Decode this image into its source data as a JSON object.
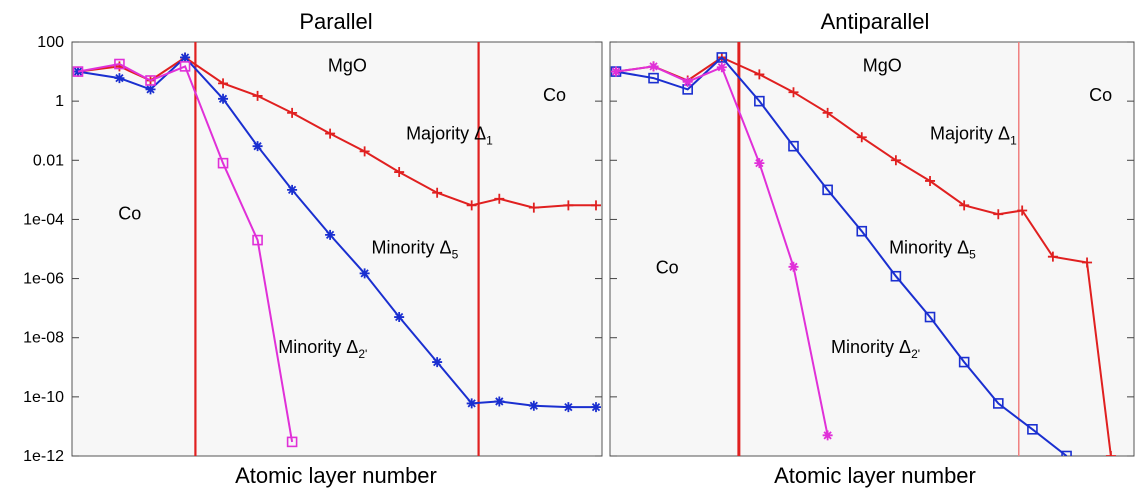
{
  "chart_data": [
    {
      "type": "line",
      "title": "Parallel",
      "xlabel": "Atomic layer number",
      "ylabel": "",
      "yscale": "log",
      "ylim": [
        1e-12,
        100
      ],
      "xlim": [
        0,
        15
      ],
      "y_ticks": [
        "100",
        "1",
        "0.01",
        "1e-04",
        "1e-06",
        "1e-08",
        "1e-10",
        "1e-12"
      ],
      "show_y_tick_labels": true,
      "grid": false,
      "background": "#f7f7f7",
      "vlines": [
        {
          "x": 3.4,
          "color": "#e02020"
        },
        {
          "x": 11.6,
          "color": "#e02020"
        }
      ],
      "region_labels": [
        {
          "text": "MgO",
          "x": 7.8,
          "y": 10
        },
        {
          "text": "Co",
          "x": 13.8,
          "y": 1
        },
        {
          "text": "Co",
          "x": 1.5,
          "y": 0.0001
        }
      ],
      "series": [
        {
          "label_main": "Majority Δ",
          "label_sub": "1",
          "label_pos": {
            "x": 9.5,
            "y": 0.05
          },
          "color": "#e02020",
          "marker": "plus",
          "x": [
            0,
            1.2,
            2.1,
            3.1,
            4.2,
            5.2,
            6.2,
            7.3,
            8.3,
            9.3,
            10.4,
            11.4,
            12.2,
            13.2,
            14.2,
            15
          ],
          "y": [
            10,
            15,
            5,
            30,
            4,
            1.5,
            0.4,
            0.08,
            0.02,
            0.004,
            0.0008,
            0.0003,
            0.0005,
            0.00025,
            0.0003,
            0.0003
          ]
        },
        {
          "label_main": "Minority Δ",
          "label_sub": "5",
          "label_pos": {
            "x": 8.5,
            "y": 7e-06
          },
          "color": "#1a2fd0",
          "marker": "star",
          "x": [
            0,
            1.2,
            2.1,
            3.1,
            4.2,
            5.2,
            6.2,
            7.3,
            8.3,
            9.3,
            10.4,
            11.4,
            12.2,
            13.2,
            14.2,
            15
          ],
          "y": [
            10,
            6,
            2.5,
            30,
            1.2,
            0.03,
            0.001,
            3e-05,
            1.5e-06,
            5e-08,
            1.5e-09,
            6e-11,
            7e-11,
            5e-11,
            4.5e-11,
            4.5e-11
          ]
        },
        {
          "label_main": "Minority Δ",
          "label_sub": "2'",
          "label_pos": {
            "x": 5.8,
            "y": 3e-09
          },
          "color": "#e030d8",
          "marker": "square",
          "x": [
            0,
            1.2,
            2.1,
            3.1,
            4.2,
            5.2,
            6.2
          ],
          "y": [
            10,
            18,
            5,
            15,
            0.008,
            2e-05,
            3e-12
          ]
        }
      ]
    },
    {
      "type": "line",
      "title": "Antiparallel",
      "xlabel": "Atomic layer number",
      "ylabel": "",
      "yscale": "log",
      "ylim": [
        1e-12,
        100
      ],
      "xlim": [
        0,
        15
      ],
      "y_ticks": [
        "100",
        "1",
        "0.01",
        "1e-04",
        "1e-06",
        "1e-08",
        "1e-10",
        "1e-12"
      ],
      "show_y_tick_labels": false,
      "grid": false,
      "background": "#f7f7f7",
      "vlines": [
        {
          "x": 3.6,
          "color": "#e02020",
          "width": 3
        },
        {
          "x": 11.8,
          "color": "#f08080",
          "width": 1.5
        }
      ],
      "region_labels": [
        {
          "text": "MgO",
          "x": 7.8,
          "y": 10
        },
        {
          "text": "Co",
          "x": 14.2,
          "y": 1
        },
        {
          "text": "Co",
          "x": 1.5,
          "y": 1.5e-06
        }
      ],
      "series": [
        {
          "label_main": "Majority Δ",
          "label_sub": "1",
          "label_pos": {
            "x": 9.2,
            "y": 0.05
          },
          "color": "#e02020",
          "marker": "plus",
          "x": [
            0,
            1.1,
            2.1,
            3.1,
            4.2,
            5.2,
            6.2,
            7.2,
            8.2,
            9.2,
            10.2,
            11.2,
            11.9,
            12.8,
            13.8,
            14.5
          ],
          "y": [
            10,
            15,
            5,
            30,
            8,
            2,
            0.4,
            0.06,
            0.01,
            0.002,
            0.0003,
            0.00015,
            0.0002,
            5.5e-06,
            3.5e-06,
            1e-12
          ]
        },
        {
          "label_main": "Minority Δ",
          "label_sub": "5",
          "label_pos": {
            "x": 8.0,
            "y": 7e-06
          },
          "color": "#1a2fd0",
          "marker": "square",
          "x": [
            0,
            1.1,
            2.1,
            3.1,
            4.2,
            5.2,
            6.2,
            7.2,
            8.2,
            9.2,
            10.2,
            11.2,
            12.2,
            13.2
          ],
          "y": [
            10,
            6,
            2.5,
            30,
            1,
            0.03,
            0.001,
            4e-05,
            1.2e-06,
            5e-08,
            1.5e-09,
            6e-11,
            8e-12,
            1e-12
          ]
        },
        {
          "label_main": "Minority Δ",
          "label_sub": "2'",
          "label_pos": {
            "x": 6.3,
            "y": 3e-09
          },
          "color": "#e030d8",
          "marker": "star",
          "x": [
            0,
            1.1,
            2.1,
            3.1,
            4.2,
            5.2,
            6.2
          ],
          "y": [
            10,
            15,
            4.5,
            14,
            0.008,
            2.5e-06,
            5e-12
          ]
        }
      ]
    }
  ]
}
